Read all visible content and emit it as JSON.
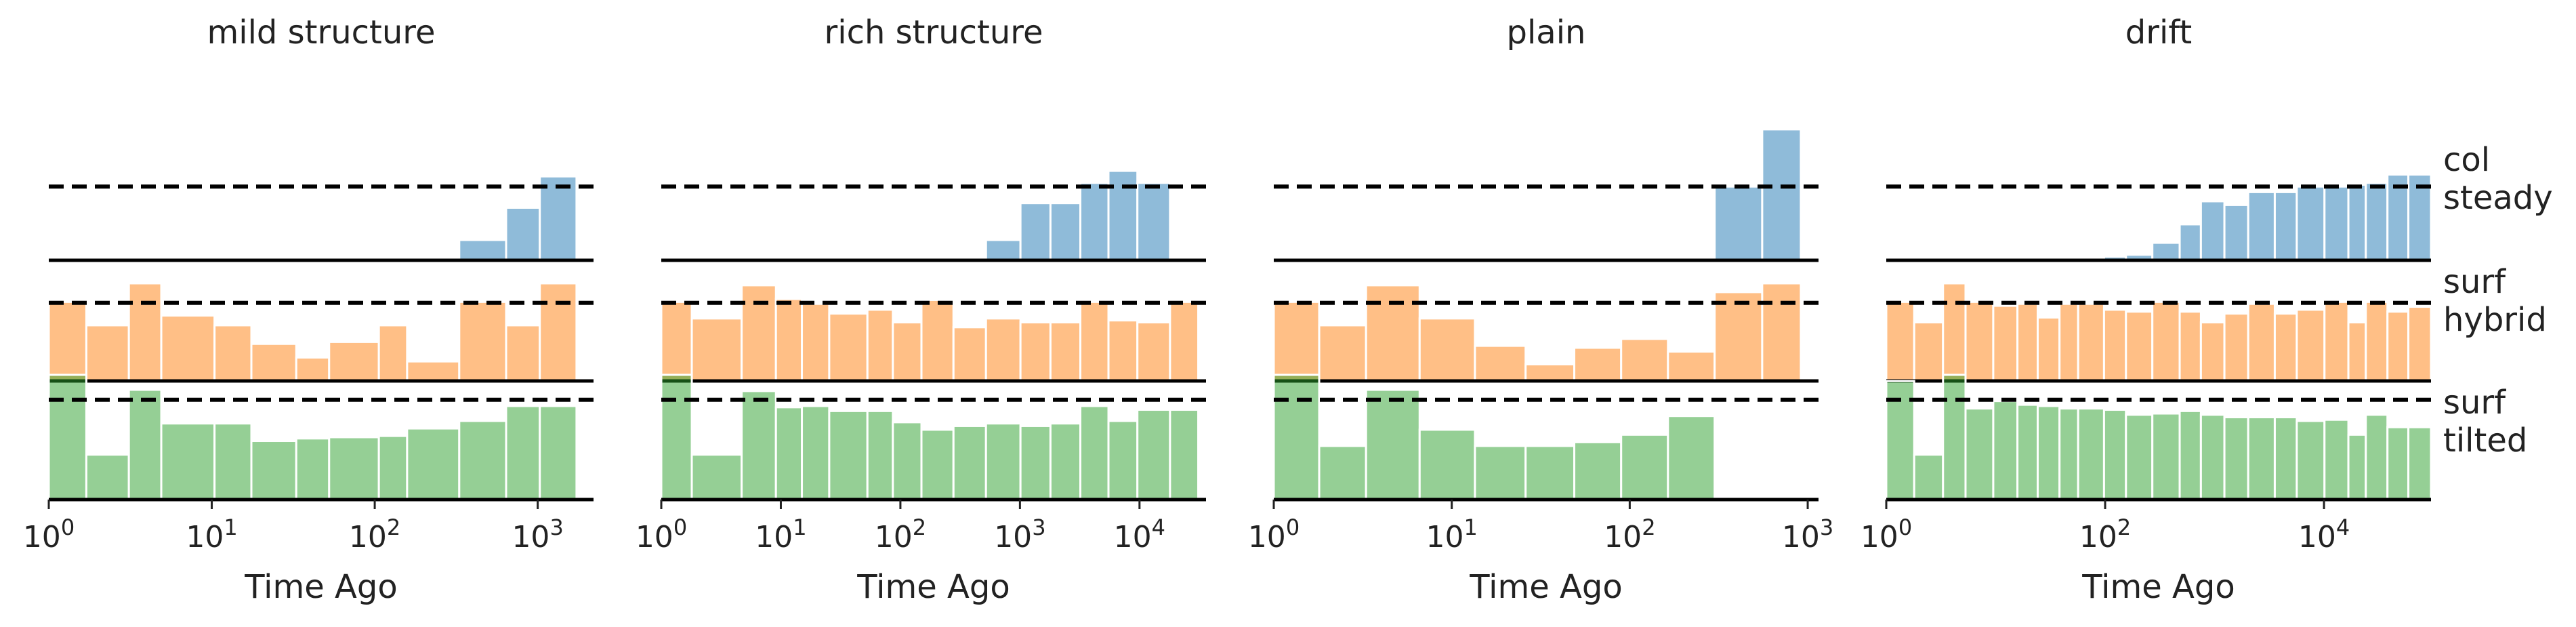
{
  "colors": {
    "col_steady": "#1f77b4",
    "surf_hybrid": "#ff7f0e",
    "surf_tilted": "#2ca02c",
    "dashed_line": "#000000",
    "baseline": "#000000"
  },
  "row_labels": [
    {
      "top": "col",
      "bottom": "steady"
    },
    {
      "top": "surf",
      "bottom": "hybrid"
    },
    {
      "top": "surf",
      "bottom": "tilted"
    }
  ],
  "chart_data": [
    {
      "type": "bar",
      "title": "mild structure",
      "xlabel": "Time Ago",
      "x_scale": "log",
      "xlim": [
        1,
        2200
      ],
      "x_ticks": [
        {
          "value": 1,
          "label": "10⁰"
        },
        {
          "value": 10,
          "label": "10¹"
        },
        {
          "value": 100,
          "label": "10²"
        },
        {
          "value": 1000,
          "label": "10³"
        }
      ],
      "bin_edges": [
        1,
        1.7,
        3.1,
        4.9,
        10.4,
        17.5,
        33,
        52.5,
        106,
        158,
        330,
        640,
        1030,
        1730
      ],
      "series": [
        {
          "name": "col steady",
          "color_key": "col_steady",
          "values": [
            0,
            0,
            0,
            0,
            0,
            0,
            0,
            0,
            0,
            0,
            0.22,
            0.57,
            0.91
          ]
        },
        {
          "name": "surf hybrid",
          "color_key": "surf_hybrid",
          "values": [
            0.81,
            0.57,
            1.0,
            0.67,
            0.57,
            0.38,
            0.24,
            0.4,
            0.57,
            0.2,
            0.81,
            0.57,
            1.0
          ]
        },
        {
          "name": "surf tilted",
          "color_key": "surf_tilted",
          "values": [
            1.0,
            0.36,
            0.88,
            0.61,
            0.61,
            0.47,
            0.49,
            0.5,
            0.51,
            0.57,
            0.63,
            0.75,
            0.75
          ]
        }
      ],
      "reference_level": 0.8
    },
    {
      "type": "bar",
      "title": "rich structure",
      "xlabel": "Time Ago",
      "x_scale": "log",
      "xlim": [
        1,
        36000
      ],
      "x_ticks": [
        {
          "value": 1,
          "label": "10⁰"
        },
        {
          "value": 10,
          "label": "10¹"
        },
        {
          "value": 100,
          "label": "10²"
        },
        {
          "value": 1000,
          "label": "10³"
        },
        {
          "value": 10000,
          "label": "10⁴"
        }
      ],
      "bin_edges": [
        1,
        1.8,
        4.7,
        9.1,
        15,
        25.4,
        53,
        86.5,
        150,
        278,
        520,
        1010,
        1800,
        3200,
        5500,
        9600,
        18000,
        31000
      ],
      "series": [
        {
          "name": "col steady",
          "color_key": "col_steady",
          "values": [
            0,
            0,
            0,
            0,
            0,
            0,
            0,
            0,
            0,
            0.02,
            0.22,
            0.62,
            0.62,
            0.84,
            0.97,
            0.84,
            0.02
          ]
        },
        {
          "name": "surf hybrid",
          "color_key": "surf_hybrid",
          "values": [
            0.81,
            0.64,
            0.98,
            0.84,
            0.79,
            0.69,
            0.73,
            0.6,
            0.83,
            0.55,
            0.64,
            0.6,
            0.6,
            0.81,
            0.62,
            0.6,
            0.81
          ]
        },
        {
          "name": "surf tilted",
          "color_key": "surf_tilted",
          "values": [
            1.0,
            0.36,
            0.87,
            0.74,
            0.75,
            0.71,
            0.71,
            0.62,
            0.56,
            0.59,
            0.61,
            0.59,
            0.61,
            0.75,
            0.63,
            0.72,
            0.72
          ]
        }
      ],
      "reference_level": 0.8
    },
    {
      "type": "bar",
      "title": "plain",
      "xlabel": "Time Ago",
      "x_scale": "log",
      "xlim": [
        1,
        1150
      ],
      "x_ticks": [
        {
          "value": 1,
          "label": "10⁰"
        },
        {
          "value": 10,
          "label": "10¹"
        },
        {
          "value": 100,
          "label": "10²"
        },
        {
          "value": 1000,
          "label": "10³"
        }
      ],
      "bin_edges": [
        1,
        1.8,
        3.3,
        6.6,
        13.5,
        26,
        48.8,
        89.5,
        164,
        300,
        555,
        915
      ],
      "series": [
        {
          "name": "col steady",
          "color_key": "col_steady",
          "values": [
            0,
            0,
            0,
            0,
            0,
            0,
            0,
            0,
            0,
            0.8,
            1.42
          ]
        },
        {
          "name": "surf hybrid",
          "color_key": "surf_hybrid",
          "values": [
            0.81,
            0.57,
            0.98,
            0.64,
            0.36,
            0.17,
            0.34,
            0.43,
            0.3,
            0.91,
            1.0
          ]
        },
        {
          "name": "surf tilted",
          "color_key": "surf_tilted",
          "values": [
            1.0,
            0.43,
            0.88,
            0.56,
            0.43,
            0.43,
            0.46,
            0.52,
            0.67,
            0,
            0
          ]
        }
      ],
      "reference_level": 0.8
    },
    {
      "type": "bar",
      "title": "drift",
      "xlabel": "Time Ago",
      "x_scale": "log",
      "xlim": [
        1,
        95000
      ],
      "x_ticks": [
        {
          "value": 1,
          "label": "10⁰"
        },
        {
          "value": 100,
          "label": "10²"
        },
        {
          "value": 10000,
          "label": "10⁴"
        }
      ],
      "bin_edges": [
        1,
        1.8,
        3.3,
        5.3,
        9.5,
        15.8,
        24.2,
        38.3,
        56.7,
        97.7,
        155,
        270,
        480,
        750,
        1230,
        2030,
        3550,
        5640,
        10100,
        16700,
        24100,
        38000,
        59000,
        95000
      ],
      "series": [
        {
          "name": "col steady",
          "color_key": "col_steady",
          "values": [
            0,
            0,
            0,
            0.02,
            0,
            0,
            0,
            0,
            0,
            0.04,
            0.06,
            0.19,
            0.39,
            0.64,
            0.6,
            0.74,
            0.74,
            0.8,
            0.8,
            0.82,
            0.84,
            0.93,
            0.93
          ]
        },
        {
          "name": "surf hybrid",
          "color_key": "surf_hybrid",
          "values": [
            0.81,
            0.6,
            1.0,
            0.81,
            0.77,
            0.79,
            0.65,
            0.79,
            0.79,
            0.73,
            0.71,
            0.81,
            0.71,
            0.6,
            0.69,
            0.79,
            0.69,
            0.73,
            0.81,
            0.6,
            0.81,
            0.71,
            0.76
          ]
        },
        {
          "name": "surf tilted",
          "color_key": "surf_tilted",
          "values": [
            0.95,
            0.36,
            1.0,
            0.73,
            0.79,
            0.76,
            0.75,
            0.73,
            0.73,
            0.72,
            0.68,
            0.69,
            0.71,
            0.68,
            0.66,
            0.66,
            0.66,
            0.63,
            0.64,
            0.52,
            0.68,
            0.58,
            0.58
          ]
        }
      ],
      "reference_level": 0.8
    }
  ]
}
